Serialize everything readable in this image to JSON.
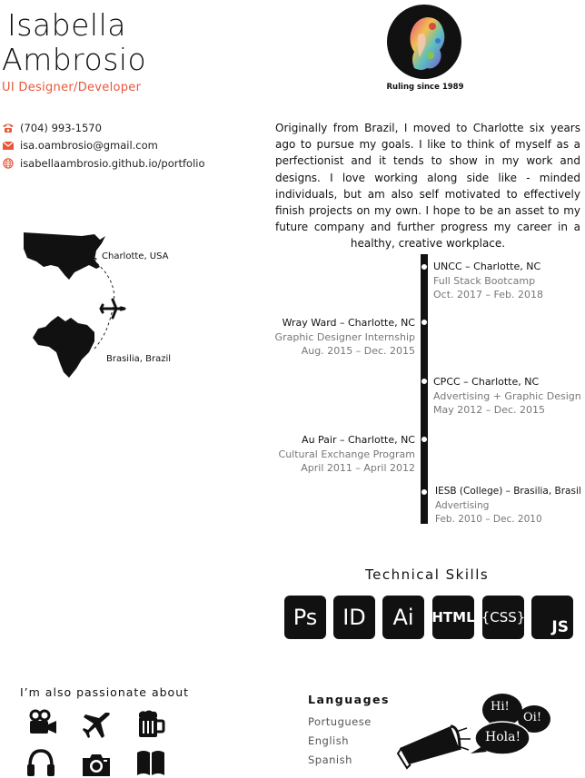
{
  "header": {
    "first_name": "Isabella",
    "last_name": "Ambrosio",
    "role": "UI Designer/Developer"
  },
  "contact": {
    "phone": "(704) 993-1570",
    "email": "isa.oambrosio@gmail.com",
    "website": "isabellaambrosio.github.io/portfolio"
  },
  "avatar": {
    "caption": "Ruling since 1989"
  },
  "bio": "Originally from Brazil, I moved to Charlotte six years ago to pursue my goals. I like to think of myself as a perfectionist and it tends to show in my work and designs. I love working along side like - minded individuals, but am also self motivated to effectively finish projects on my own. I hope to be an asset to my future company and further progress my career in a healthy, creative workplace.",
  "map": {
    "origin_label": "Brasilia, Brazil",
    "destination_label": "Charlotte, USA"
  },
  "timeline": [
    {
      "title": "UNCC – Charlotte, NC",
      "subtitle": "Full Stack Bootcamp",
      "dates": "Oct. 2017 – Feb. 2018",
      "side": "right"
    },
    {
      "title": "Wray Ward – Charlotte, NC",
      "subtitle": "Graphic Designer Internship",
      "dates": "Aug. 2015 – Dec. 2015",
      "side": "left"
    },
    {
      "title": "CPCC – Charlotte, NC",
      "subtitle": "Advertising + Graphic Design",
      "dates": "May 2012 – Dec. 2015",
      "side": "right"
    },
    {
      "title": "Au Pair – Charlotte, NC",
      "subtitle": "Cultural Exchange Program",
      "dates": "April 2011 – April 2012",
      "side": "left"
    },
    {
      "title": "IESB (College) – Brasilia, Brasil",
      "subtitle": "Advertising",
      "dates": "Feb. 2010 – Dec. 2010",
      "side": "right"
    }
  ],
  "skills": {
    "title": "Technical Skills",
    "items": [
      "Ps",
      "ID",
      "Ai",
      "HTML",
      "{CSS}",
      "JS"
    ]
  },
  "passions": {
    "title": "I’m also passionate about",
    "icons": [
      "video-camera-icon",
      "airplane-icon",
      "beer-mug-icon",
      "headphones-icon",
      "photo-camera-icon",
      "book-icon"
    ]
  },
  "languages": {
    "title": "Languages",
    "items": [
      "Portuguese",
      "English",
      "Spanish"
    ]
  },
  "bubbles": {
    "hi": "Hi!",
    "oi": "Oi!",
    "hola": "Hola!"
  },
  "colors": {
    "accent": "#e8573a",
    "dark": "#111111"
  }
}
